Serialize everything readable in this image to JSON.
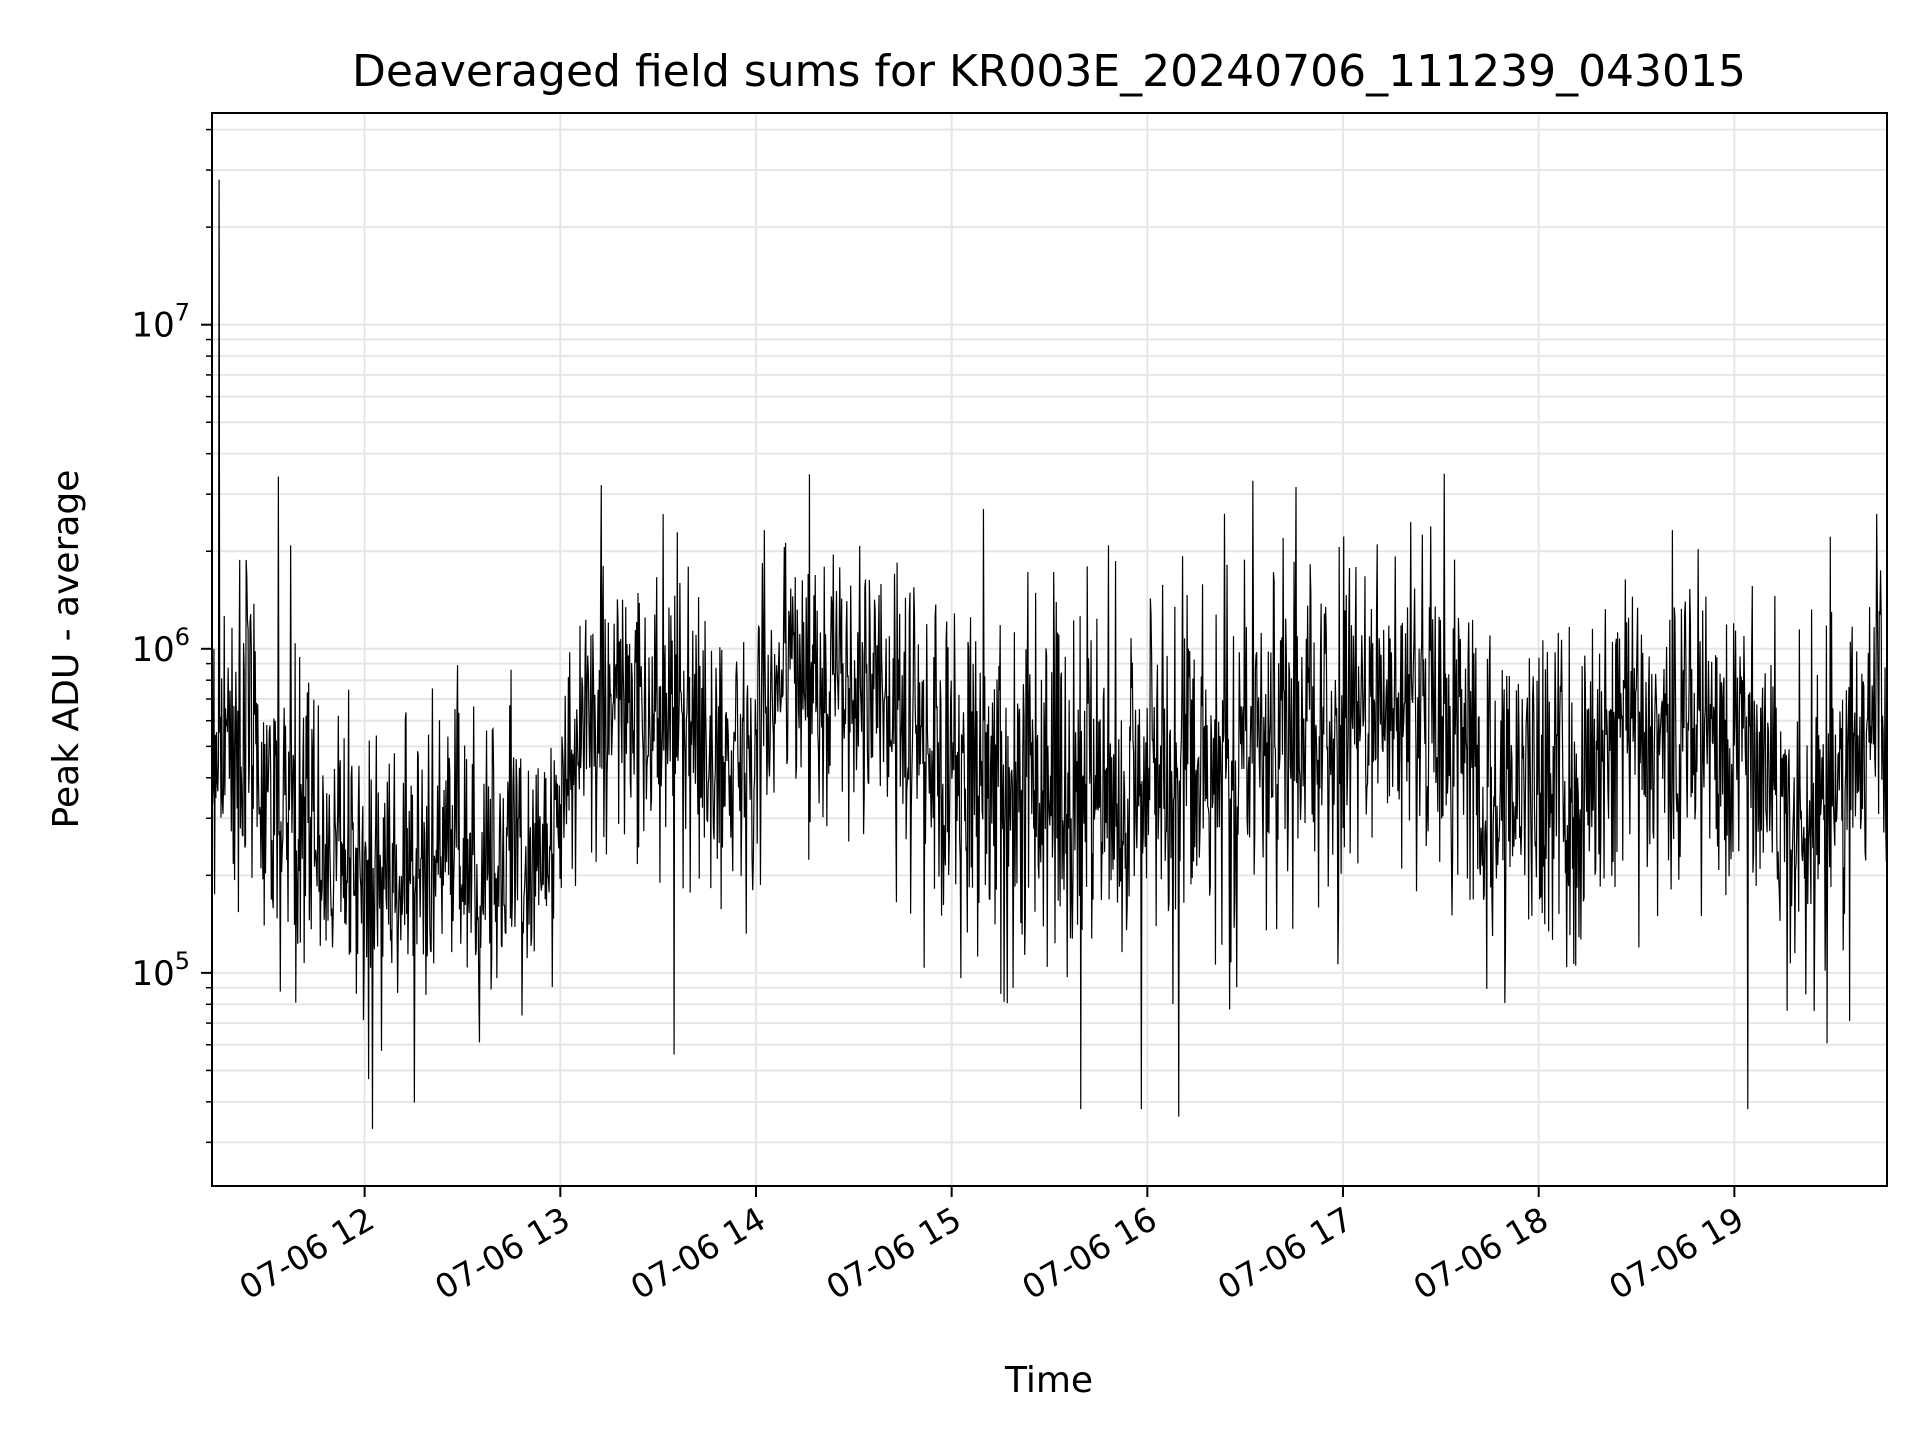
{
  "chart_data": {
    "type": "line",
    "title": "Deaveraged field sums for KR003E_20240706_111239_043015",
    "xlabel": "Time",
    "ylabel": "Peak ADU - average",
    "yscale": "log",
    "grid": true,
    "grid_minor_y": true,
    "line_color": "#000000",
    "grid_color": "#e6e6e6",
    "xlim_hours": [
      11.22,
      19.78
    ],
    "ylim": [
      22000,
      45000000
    ],
    "x_ticks": [
      {
        "hour": 12,
        "label": "07-06 12"
      },
      {
        "hour": 13,
        "label": "07-06 13"
      },
      {
        "hour": 14,
        "label": "07-06 14"
      },
      {
        "hour": 15,
        "label": "07-06 15"
      },
      {
        "hour": 16,
        "label": "07-06 16"
      },
      {
        "hour": 17,
        "label": "07-06 17"
      },
      {
        "hour": 18,
        "label": "07-06 18"
      },
      {
        "hour": 19,
        "label": "07-06 19"
      }
    ],
    "y_ticks": [
      {
        "value": 100000,
        "base": "10",
        "exp": "5"
      },
      {
        "value": 1000000,
        "base": "10",
        "exp": "6"
      },
      {
        "value": 10000000,
        "base": "10",
        "exp": "7"
      }
    ],
    "series_profile": [
      {
        "hour": 11.22,
        "logcenter": 5.75,
        "spread": 0.45
      },
      {
        "hour": 11.4,
        "logcenter": 5.72,
        "spread": 0.45
      },
      {
        "hour": 11.55,
        "logcenter": 5.5,
        "spread": 0.4
      },
      {
        "hour": 11.8,
        "logcenter": 5.4,
        "spread": 0.35
      },
      {
        "hour": 12.1,
        "logcenter": 5.3,
        "spread": 0.35
      },
      {
        "hour": 12.5,
        "logcenter": 5.38,
        "spread": 0.35
      },
      {
        "hour": 12.8,
        "logcenter": 5.35,
        "spread": 0.35
      },
      {
        "hour": 13.0,
        "logcenter": 5.45,
        "spread": 0.3
      },
      {
        "hour": 13.15,
        "logcenter": 5.85,
        "spread": 0.35
      },
      {
        "hour": 13.6,
        "logcenter": 5.75,
        "spread": 0.35
      },
      {
        "hour": 13.9,
        "logcenter": 5.65,
        "spread": 0.35
      },
      {
        "hour": 14.15,
        "logcenter": 5.95,
        "spread": 0.3
      },
      {
        "hour": 14.6,
        "logcenter": 5.85,
        "spread": 0.35
      },
      {
        "hour": 15.0,
        "logcenter": 5.65,
        "spread": 0.45
      },
      {
        "hour": 15.6,
        "logcenter": 5.55,
        "spread": 0.5
      },
      {
        "hour": 16.0,
        "logcenter": 5.6,
        "spread": 0.5
      },
      {
        "hour": 16.5,
        "logcenter": 5.72,
        "spread": 0.45
      },
      {
        "hour": 17.0,
        "logcenter": 5.75,
        "spread": 0.4
      },
      {
        "hour": 17.4,
        "logcenter": 5.88,
        "spread": 0.35
      },
      {
        "hour": 17.7,
        "logcenter": 5.6,
        "spread": 0.4
      },
      {
        "hour": 18.2,
        "logcenter": 5.55,
        "spread": 0.45
      },
      {
        "hour": 18.5,
        "logcenter": 5.78,
        "spread": 0.4
      },
      {
        "hour": 19.0,
        "logcenter": 5.75,
        "spread": 0.4
      },
      {
        "hour": 19.4,
        "logcenter": 5.45,
        "spread": 0.45
      },
      {
        "hour": 19.78,
        "logcenter": 5.85,
        "spread": 0.4
      }
    ],
    "notable_points": [
      {
        "hour": 11.255,
        "value": 28000000
      },
      {
        "hour": 11.23,
        "value": 1000000
      },
      {
        "hour": 12.04,
        "value": 33000
      },
      {
        "hour": 12.02,
        "value": 47000
      },
      {
        "hour": 13.58,
        "value": 56000
      },
      {
        "hour": 15.66,
        "value": 38000
      },
      {
        "hour": 15.97,
        "value": 38000
      },
      {
        "hour": 16.16,
        "value": 36000
      },
      {
        "hour": 19.07,
        "value": 38000
      },
      {
        "hour": 13.21,
        "value": 3200000
      },
      {
        "hour": 16.54,
        "value": 3300000
      },
      {
        "hour": 11.56,
        "value": 3400000
      }
    ]
  }
}
